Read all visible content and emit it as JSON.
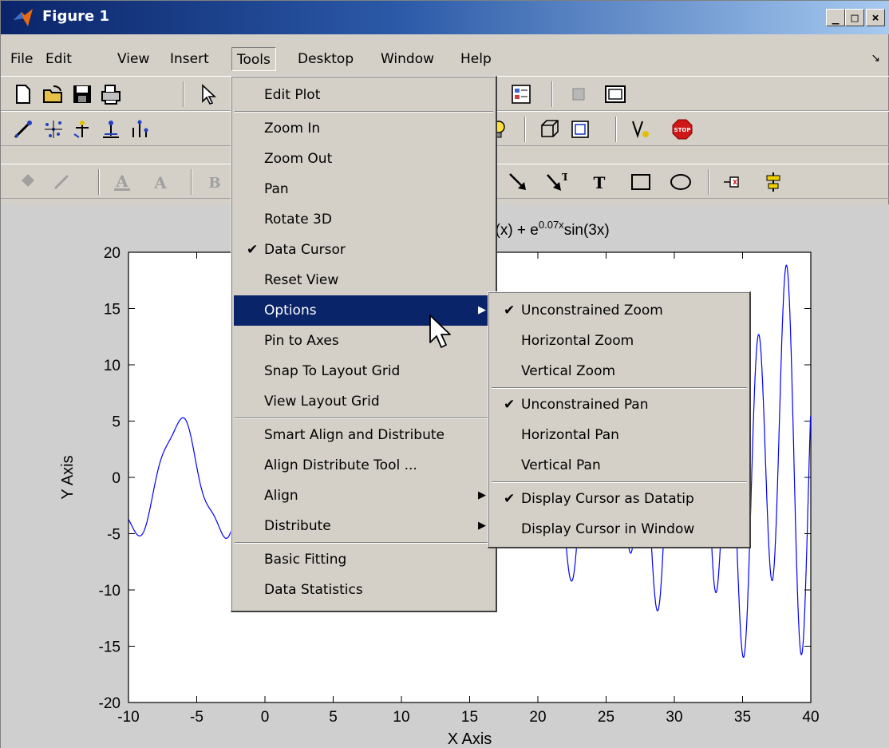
{
  "window": {
    "title": "Figure 1",
    "controls": {
      "minimize": "_",
      "maximize": "□",
      "close": "×"
    }
  },
  "menubar": {
    "items": [
      "File",
      "Edit",
      "View",
      "Insert",
      "Tools",
      "Desktop",
      "Window",
      "Help"
    ],
    "open": "Tools"
  },
  "toolbars": {
    "row1": [
      "new-icon",
      "open-icon",
      "save-icon",
      "print-icon",
      "arrow-icon",
      "legend-icon",
      "hide-plot-tools-icon",
      "show-plot-tools-icon"
    ],
    "row2": [
      "plot-select-icon",
      "scatter-icon",
      "stem-icon",
      "bar-icon",
      "stairs-icon",
      "lightbulb-icon",
      "box-icon",
      "plot3-icon",
      "data-brush-icon",
      "stop-icon"
    ],
    "row3": [
      "fill-color-icon",
      "line-color-icon",
      "font-color-icon",
      "font-icon",
      "bold-icon",
      "arrow-annotation-icon",
      "text-arrow-icon",
      "text-annotation-icon",
      "rectangle-icon",
      "ellipse-icon",
      "pin-icon",
      "align-icon"
    ]
  },
  "plot": {
    "title_prefix": "s(x) + e",
    "title_superscript": "0.07x",
    "title_suffix": "sin(3x)",
    "xlabel": "X Axis",
    "ylabel": "Y Axis",
    "line_color": "#0000ff",
    "xticks": [
      "-10",
      "-5",
      "0",
      "5",
      "10",
      "15",
      "20",
      "25",
      "30",
      "35",
      "40"
    ],
    "yticks": [
      "20",
      "15",
      "10",
      "5",
      "0",
      "-5",
      "-10",
      "-15",
      "-20"
    ]
  },
  "chart_data": {
    "type": "line",
    "xlim": [
      -10,
      40
    ],
    "ylim": [
      -20,
      20
    ],
    "xlabel": "X Axis",
    "ylabel": "Y Axis",
    "grid": false
  },
  "tools_menu": {
    "items": [
      {
        "label": "Edit Plot"
      },
      {
        "sep": true
      },
      {
        "label": "Zoom In"
      },
      {
        "label": "Zoom Out"
      },
      {
        "label": "Pan"
      },
      {
        "label": "Rotate 3D"
      },
      {
        "label": "Data Cursor",
        "checked": true
      },
      {
        "label": "Reset View"
      },
      {
        "label": "Options",
        "submenu": true,
        "highlight": true
      },
      {
        "label": "Pin to Axes"
      },
      {
        "label": "Snap To Layout Grid"
      },
      {
        "label": "View Layout Grid"
      },
      {
        "sep": true
      },
      {
        "label": "Smart Align and Distribute"
      },
      {
        "label": "Align Distribute Tool ..."
      },
      {
        "label": "Align",
        "submenu": true
      },
      {
        "label": "Distribute",
        "submenu": true
      },
      {
        "sep": true
      },
      {
        "label": "Basic Fitting"
      },
      {
        "label": "Data Statistics"
      }
    ]
  },
  "options_menu": {
    "items": [
      {
        "label": "Unconstrained Zoom",
        "checked": true
      },
      {
        "label": "Horizontal Zoom"
      },
      {
        "label": "Vertical Zoom"
      },
      {
        "sep": true
      },
      {
        "label": "Unconstrained Pan",
        "checked": true
      },
      {
        "label": "Horizontal Pan"
      },
      {
        "label": "Vertical Pan"
      },
      {
        "sep": true
      },
      {
        "label": "Display Cursor as Datatip",
        "checked": true
      },
      {
        "label": "Display Cursor in Window"
      }
    ]
  }
}
